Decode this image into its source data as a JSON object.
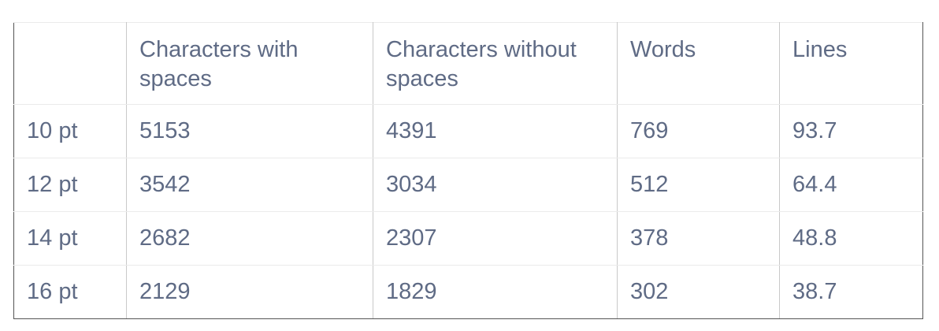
{
  "table": {
    "headers": [
      "",
      "Characters with spaces",
      "Characters without spaces",
      "Words",
      "Lines"
    ],
    "rows": [
      [
        "10 pt",
        "5153",
        "4391",
        "769",
        "93.7"
      ],
      [
        "12 pt",
        "3542",
        "3034",
        "512",
        "64.4"
      ],
      [
        "14 pt",
        "2682",
        "2307",
        "378",
        "48.8"
      ],
      [
        "16 pt",
        "2129",
        "1829",
        "302",
        "38.7"
      ]
    ]
  }
}
